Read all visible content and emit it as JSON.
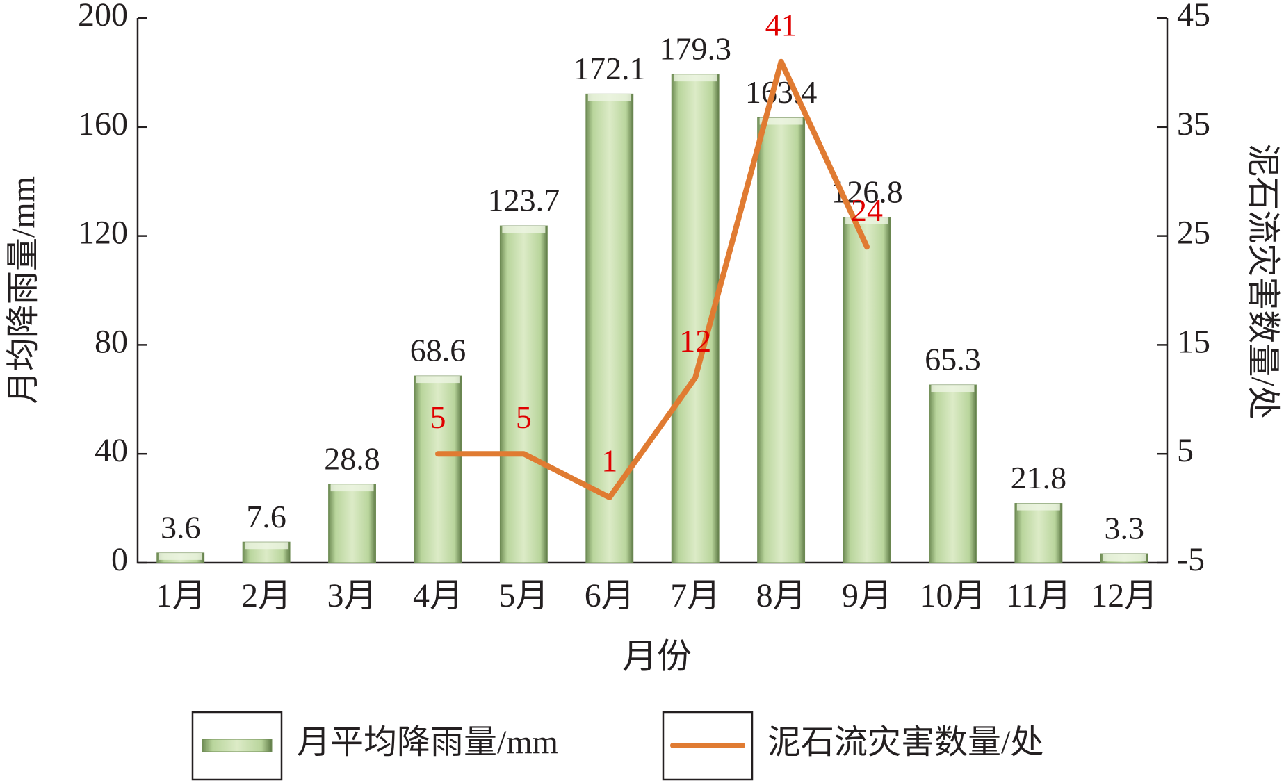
{
  "chart_data": {
    "type": "bar_line",
    "x_label": "月份",
    "y_label": "月均降雨量/mm",
    "y2_label": "泥石流灾害数量/处",
    "categories": [
      "1月",
      "2月",
      "3月",
      "4月",
      "5月",
      "6月",
      "7月",
      "8月",
      "9月",
      "10月",
      "11月",
      "12月"
    ],
    "series": [
      {
        "name": "月平均降雨量/mm",
        "type": "bar",
        "color": "#b9d59c",
        "label_color": "#231f20",
        "values": [
          3.6,
          7.6,
          28.8,
          68.6,
          123.7,
          172.1,
          179.3,
          163.4,
          126.8,
          65.3,
          21.8,
          3.3
        ]
      },
      {
        "name": "泥石流灾害数量/处",
        "type": "line",
        "axis": "y2",
        "color": "#e07b32",
        "label_color": "#e00000",
        "values": [
          null,
          null,
          null,
          5,
          5,
          1,
          12,
          41,
          24,
          null,
          null,
          null
        ]
      }
    ],
    "ylim": [
      0,
      200
    ],
    "yticks": [
      0,
      40,
      80,
      120,
      160,
      200
    ],
    "y2lim": [
      -5,
      45
    ],
    "y2ticks": [
      -5,
      5,
      15,
      25,
      35,
      45
    ],
    "legend": "bottom"
  }
}
